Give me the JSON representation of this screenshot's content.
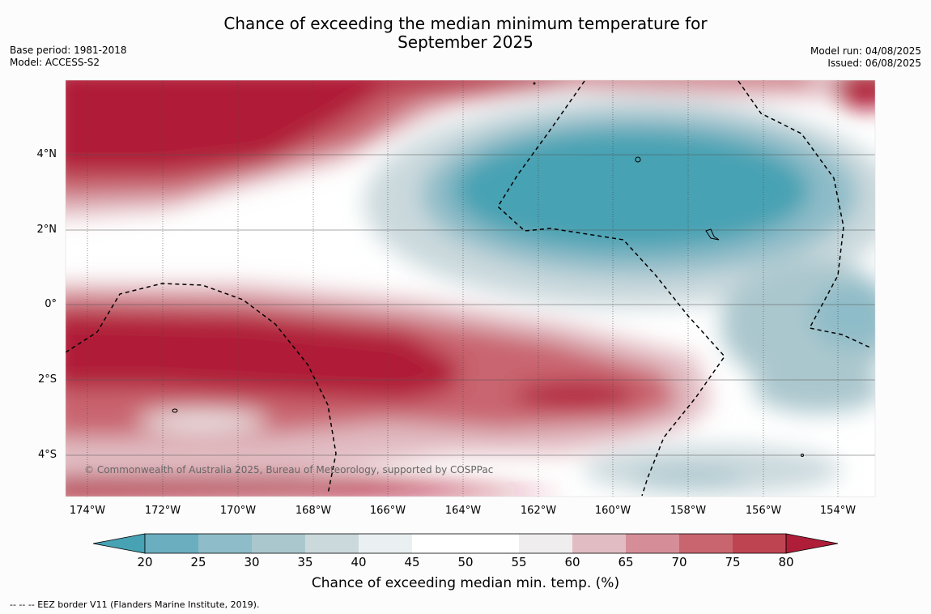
{
  "title_line1": "Chance of exceeding the median minimum temperature for",
  "title_line2": "September 2025",
  "base_period": "Base period: 1981-2018",
  "model": "Model: ACCESS-S2",
  "model_run": "Model run: 04/08/2025",
  "issued": "Issued: 06/08/2025",
  "copyright": "© Commonwealth of Australia 2025, Bureau of Meteorology, supported by COSPPac",
  "lat_labels": [
    "4°N",
    "2°N",
    "0°",
    "2°S",
    "4°S"
  ],
  "lon_labels": [
    "174°W",
    "172°W",
    "170°W",
    "168°W",
    "166°W",
    "164°W",
    "162°W",
    "160°W",
    "158°W",
    "156°W",
    "154°W"
  ],
  "colorbar": {
    "label": "Chance of exceeding median min. temp. (%)",
    "ticks": [
      "20",
      "25",
      "30",
      "35",
      "40",
      "45",
      "50",
      "55",
      "60",
      "65",
      "70",
      "75",
      "80"
    ],
    "colors": [
      "#47a2b3",
      "#6aaec0",
      "#8ebcc8",
      "#abc7ce",
      "#cbd9dd",
      "#eaf0f1",
      "#ffffff",
      "#ffffff",
      "#efedee",
      "#e1bcc2",
      "#d58e98",
      "#c9656f",
      "#bf4452",
      "#b01d39"
    ]
  },
  "legend_text": "-- -- -- EEZ border V11 (Flanders Marine Institute, 2019)."
}
